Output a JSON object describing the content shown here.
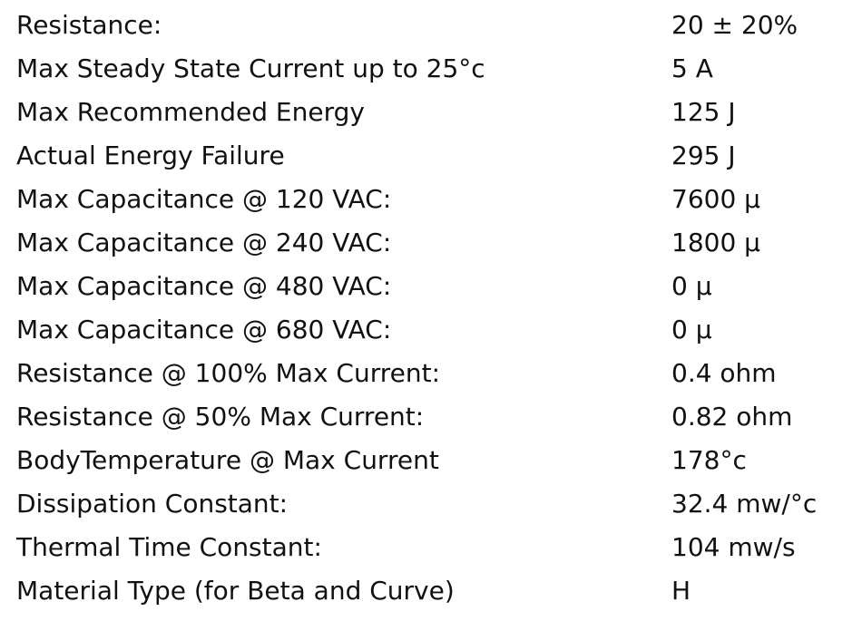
{
  "table": {
    "rows": [
      [
        "Resistance:",
        "20 ± 20%"
      ],
      [
        "Max Steady State Current up to 25°c",
        "5 A"
      ],
      [
        "Max Recommended Energy",
        "125 J"
      ],
      [
        "Actual Energy Failure",
        "295 J"
      ],
      [
        "Max Capacitance @ 120 VAC:",
        "7600 µ"
      ],
      [
        "Max Capacitance @ 240 VAC:",
        "1800 µ"
      ],
      [
        "Max Capacitance @ 480 VAC:",
        "0 µ"
      ],
      [
        "Max Capacitance @ 680 VAC:",
        "0 µ"
      ],
      [
        "Resistance @ 100% Max Current:",
        "0.4 ohm"
      ],
      [
        "Resistance @ 50% Max Current:",
        "0.82 ohm"
      ],
      [
        "BodyTemperature @ Max Current",
        "178°c"
      ],
      [
        "Dissipation Constant:",
        "32.4 mw/°c"
      ],
      [
        "Thermal Time Constant:",
        "104 mw/s"
      ],
      [
        "Material Type (for Beta and Curve)",
        "H"
      ]
    ]
  }
}
